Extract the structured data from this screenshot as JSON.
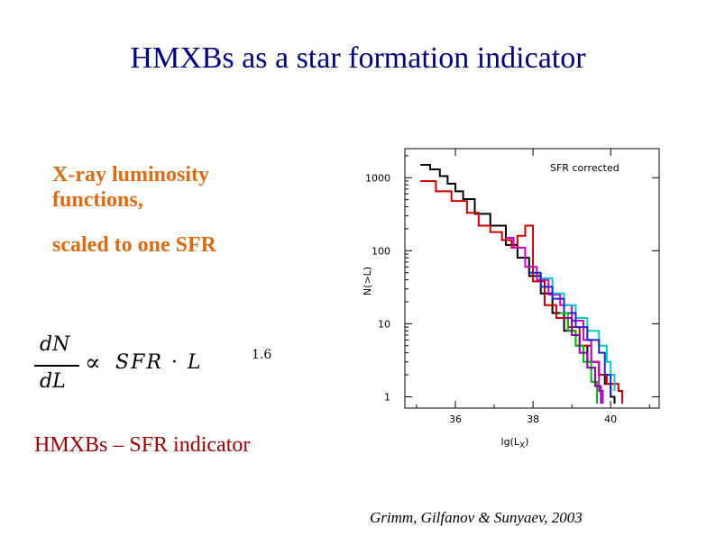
{
  "slide": {
    "title": "HMXBs as a star formation indicator",
    "subtitle_line1": "X-ray luminosity",
    "subtitle_line2": "functions,",
    "subtitle_line3": "scaled to one SFR",
    "formula": {
      "numerator": "dN",
      "denominator": "dL",
      "proportional": "∝",
      "rhs": "SFR · L",
      "exponent": "1.6"
    },
    "bottom_label": "HMXBs – SFR indicator",
    "citation": "Grimm, Gilfanov & Sunyaev, 2003"
  },
  "colors": {
    "title": "#000080",
    "orange": "#e06a10",
    "bottom_label": "#a00000"
  },
  "chart_data": {
    "type": "line",
    "annotation": "SFR corrected",
    "xlabel": "lg(L",
    "xlabel_sub": "X",
    "xlabel_end": ")",
    "ylabel": "N(>L)",
    "xlim": [
      34.7,
      41.25
    ],
    "y_log": true,
    "ylim": [
      0.7,
      2500
    ],
    "xticks": [
      36,
      38,
      40
    ],
    "xtick_labels": [
      "36",
      "38",
      "40"
    ],
    "yticks": [
      1,
      10,
      100,
      1000
    ],
    "ytick_labels": [
      "1",
      "10",
      "100",
      "1000"
    ],
    "series": [
      {
        "color": "#000000",
        "points": [
          [
            35.1,
            1500
          ],
          [
            35.35,
            1300
          ],
          [
            35.6,
            1050
          ],
          [
            35.8,
            830
          ],
          [
            36.0,
            650
          ],
          [
            36.2,
            510
          ],
          [
            36.5,
            320
          ],
          [
            36.9,
            220
          ],
          [
            37.3,
            120
          ],
          [
            37.6,
            80
          ],
          [
            37.9,
            45
          ],
          [
            38.2,
            26
          ],
          [
            38.5,
            14
          ],
          [
            38.8,
            8
          ],
          [
            39.1,
            5
          ],
          [
            39.4,
            3
          ],
          [
            39.7,
            2
          ],
          [
            39.85,
            1.5
          ],
          [
            40.0,
            1
          ],
          [
            40.1,
            0.8
          ]
        ]
      },
      {
        "color": "#cc0000",
        "points": [
          [
            35.1,
            900
          ],
          [
            35.5,
            650
          ],
          [
            35.9,
            480
          ],
          [
            36.3,
            330
          ],
          [
            36.6,
            220
          ],
          [
            36.9,
            180
          ],
          [
            37.2,
            140
          ],
          [
            37.45,
            110
          ],
          [
            37.6,
            160
          ],
          [
            37.8,
            220
          ],
          [
            38.0,
            38
          ],
          [
            38.3,
            18
          ],
          [
            38.6,
            12
          ],
          [
            38.9,
            9
          ],
          [
            39.2,
            5
          ],
          [
            39.5,
            3
          ],
          [
            39.7,
            2
          ],
          [
            39.9,
            1.5
          ],
          [
            40.2,
            1.2
          ],
          [
            40.3,
            0.8
          ]
        ]
      },
      {
        "color": "#cc00cc",
        "points": [
          [
            37.3,
            150
          ],
          [
            37.5,
            110
          ],
          [
            37.8,
            60
          ],
          [
            38.1,
            40
          ],
          [
            38.4,
            25
          ],
          [
            38.7,
            18
          ],
          [
            39.0,
            11
          ],
          [
            39.3,
            6
          ],
          [
            39.5,
            3
          ],
          [
            39.7,
            1.2
          ],
          [
            39.8,
            0.8
          ]
        ]
      },
      {
        "color": "#00cccc",
        "points": [
          [
            38.2,
            42
          ],
          [
            38.5,
            26
          ],
          [
            38.8,
            18
          ],
          [
            39.1,
            12
          ],
          [
            39.4,
            8
          ],
          [
            39.7,
            5
          ],
          [
            39.9,
            3
          ],
          [
            40.0,
            2
          ],
          [
            40.1,
            1.2
          ]
        ]
      },
      {
        "color": "#2222cc",
        "points": [
          [
            37.9,
            50
          ],
          [
            38.2,
            32
          ],
          [
            38.5,
            22
          ],
          [
            38.8,
            14
          ],
          [
            39.1,
            9
          ],
          [
            39.4,
            6
          ],
          [
            39.7,
            4
          ],
          [
            39.85,
            2
          ],
          [
            40.0,
            1
          ]
        ]
      },
      {
        "color": "#00bb00",
        "points": [
          [
            38.7,
            14
          ],
          [
            38.9,
            8
          ],
          [
            39.1,
            5
          ],
          [
            39.3,
            3
          ],
          [
            39.5,
            1.6
          ],
          [
            39.65,
            0.8
          ]
        ]
      },
      {
        "color": "#8800aa",
        "points": [
          [
            38.8,
            12
          ],
          [
            39.0,
            7
          ],
          [
            39.2,
            4
          ],
          [
            39.4,
            2.5
          ],
          [
            39.6,
            1.4
          ],
          [
            39.75,
            0.8
          ]
        ]
      }
    ]
  }
}
